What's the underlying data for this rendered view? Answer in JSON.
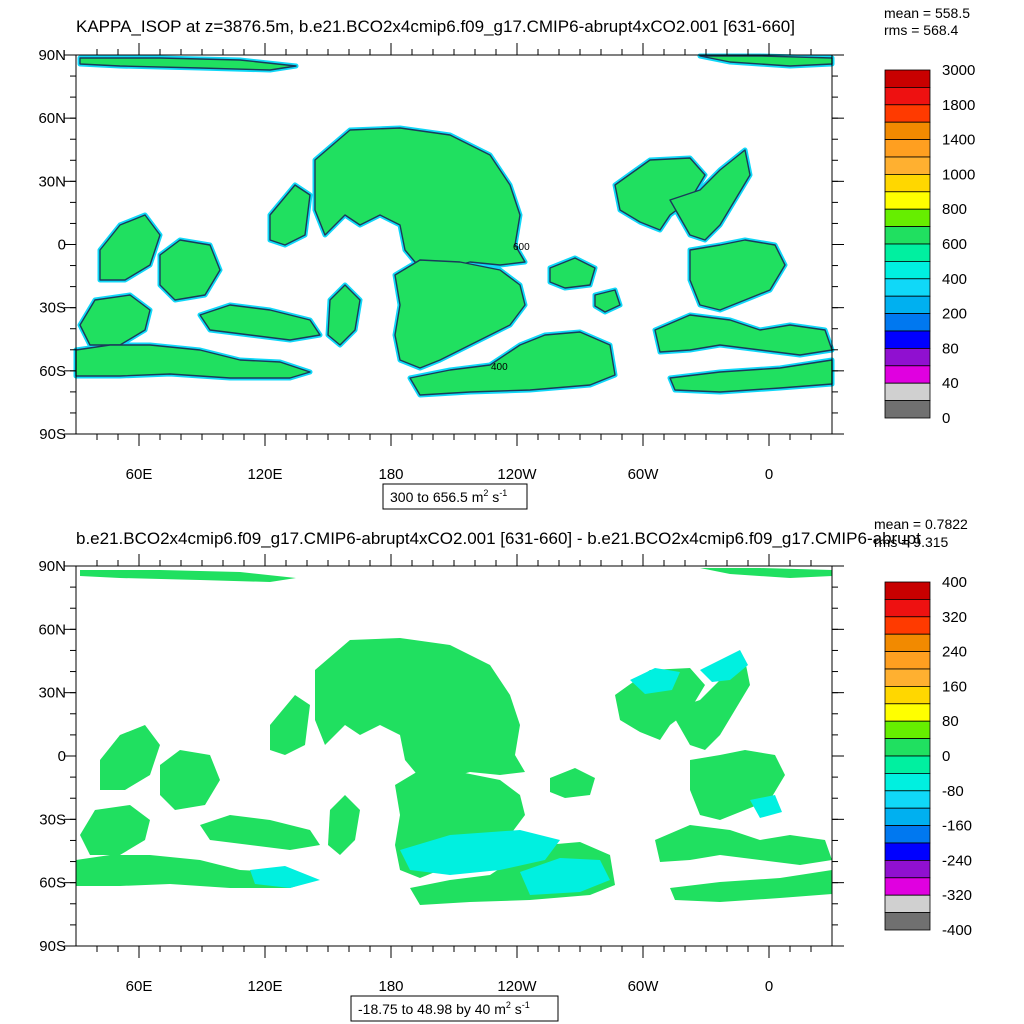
{
  "chart_data": [
    {
      "type": "heatmap",
      "title": "KAPPA_ISOP at z=3876.5m, b.e21.BCO2x4cmip6.f09_g17.CMIP6-abrupt4xCO2.001 [631-660]",
      "stats": {
        "mean_label": "mean = 558.5",
        "rms_label": "rms = 568.4"
      },
      "x_ticks": [
        "60E",
        "120E",
        "180",
        "120W",
        "60W",
        "0"
      ],
      "y_ticks": [
        "90N",
        "60N",
        "30N",
        "0",
        "30S",
        "60S",
        "90S"
      ],
      "range_label": "300 to 656.5 m",
      "range_sup": "2",
      "range_unit": " s",
      "range_sup2": "-1",
      "contour_labels": [
        "400",
        "600"
      ],
      "colorbar_labels": [
        "3000",
        "1800",
        "1400",
        "1000",
        "800",
        "600",
        "400",
        "200",
        "80",
        "40",
        "0"
      ],
      "colorbar_colors": [
        "#c80000",
        "#ee1111",
        "#ff3a00",
        "#f28a00",
        "#ff9f20",
        "#ffb030",
        "#ffd700",
        "#ffff00",
        "#66ee00",
        "#20e060",
        "#00f0a0",
        "#00f0e0",
        "#10d8f8",
        "#00b0f0",
        "#0078f0",
        "#0000ff",
        "#9010d0",
        "#e000e0",
        "#d0d0d0",
        "#707070"
      ],
      "dominant_color": "#20e060",
      "edge_color": "#10d8f8"
    },
    {
      "type": "heatmap",
      "title": "b.e21.BCO2x4cmip6.f09_g17.CMIP6-abrupt4xCO2.001 [631-660] - b.e21.BCO2x4cmip6.f09_g17.CMIP6-abrupt",
      "stats": {
        "mean_label": "mean = 0.7822",
        "rms_label": "rms = 9.315"
      },
      "x_ticks": [
        "60E",
        "120E",
        "180",
        "120W",
        "60W",
        "0"
      ],
      "y_ticks": [
        "90N",
        "60N",
        "30N",
        "0",
        "30S",
        "60S",
        "90S"
      ],
      "range_label": "-18.75 to 48.98 by 40 m",
      "range_sup": "2",
      "range_unit": " s",
      "range_sup2": "-1",
      "colorbar_labels": [
        "400",
        "320",
        "240",
        "160",
        "80",
        "0",
        "-80",
        "-160",
        "-240",
        "-320",
        "-400"
      ],
      "colorbar_colors": [
        "#c80000",
        "#ee1111",
        "#ff3a00",
        "#f28a00",
        "#ff9f20",
        "#ffb030",
        "#ffd700",
        "#ffff00",
        "#66ee00",
        "#20e060",
        "#00f0a0",
        "#00f0e0",
        "#10d8f8",
        "#00b0f0",
        "#0078f0",
        "#0000ff",
        "#9010d0",
        "#e000e0",
        "#d0d0d0",
        "#707070"
      ],
      "dominant_color": "#20e060",
      "edge_color": "#00f0e0"
    }
  ]
}
